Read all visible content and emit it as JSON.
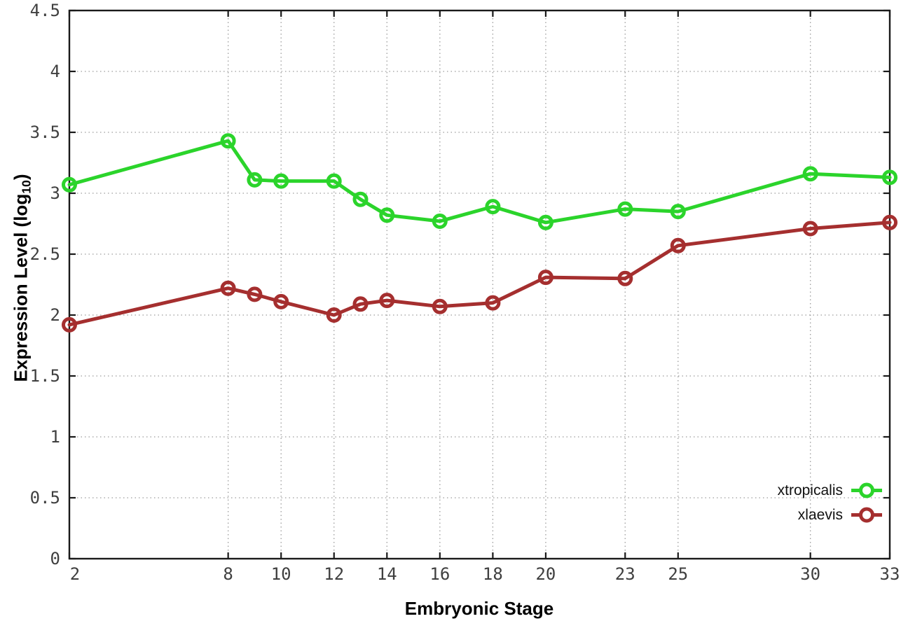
{
  "chart_data": {
    "type": "line",
    "title": "",
    "xlabel": "Embryonic Stage",
    "ylabel": {
      "pre": "Expression Level (log",
      "sub": "10",
      "post": ")"
    },
    "xlim": [
      2,
      33
    ],
    "ylim": [
      0,
      4.5
    ],
    "xticks": {
      "values": [
        2,
        8,
        10,
        12,
        14,
        16,
        18,
        20,
        23,
        25,
        30,
        33
      ],
      "labels": [
        "2",
        "8",
        "10",
        "12",
        "14",
        "16",
        "18",
        "20",
        "23",
        "25",
        "30",
        "33"
      ]
    },
    "yticks": {
      "values": [
        0,
        0.5,
        1,
        1.5,
        2,
        2.5,
        3,
        3.5,
        4,
        4.5
      ],
      "labels": [
        "0",
        "0.5",
        "1",
        "1.5",
        "2",
        "2.5",
        "3",
        "3.5",
        "4",
        "4.5"
      ]
    },
    "grid": "dotted grid at interior x and y ticks",
    "legend_position": "bottom-right inside plot",
    "x": [
      2,
      8,
      9,
      10,
      12,
      13,
      14,
      16,
      18,
      20,
      23,
      25,
      30,
      33
    ],
    "series": [
      {
        "name": "xtropicalis",
        "color": "#2bd42b",
        "marker": "open-circle",
        "values": [
          3.07,
          3.43,
          3.11,
          3.1,
          3.1,
          2.95,
          2.82,
          2.77,
          2.89,
          2.76,
          2.87,
          2.85,
          3.16,
          3.13
        ]
      },
      {
        "name": "xlaevis",
        "color": "#a52f2f",
        "marker": "open-circle",
        "values": [
          1.92,
          2.22,
          2.17,
          2.11,
          2.0,
          2.09,
          2.12,
          2.07,
          2.1,
          2.31,
          2.3,
          2.57,
          2.71,
          2.76
        ]
      }
    ]
  },
  "colors": {
    "axis": "#1a1a1a",
    "grid": "#9c9c9c",
    "tick_label": "#3f3f3f",
    "background": "#ffffff"
  }
}
